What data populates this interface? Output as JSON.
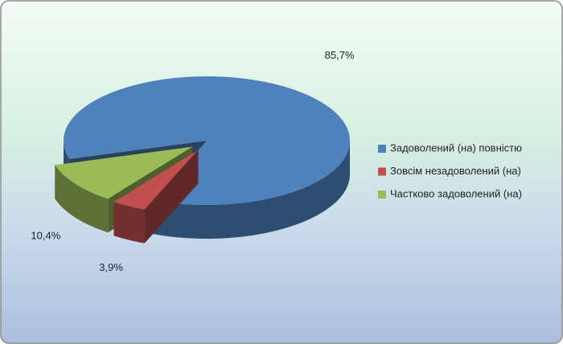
{
  "chart_data": {
    "type": "pie3d",
    "categories": [
      "Задоволений (на) повністю",
      "Зовсім незадоволений (на)",
      "Частково задоволений (на)"
    ],
    "values": [
      85.7,
      3.9,
      10.4
    ],
    "value_labels": [
      "85,7%",
      "3,9%",
      "10,4%"
    ],
    "colors": [
      "#4f81bd",
      "#c0504d",
      "#9bbb59"
    ],
    "legend": "right"
  }
}
